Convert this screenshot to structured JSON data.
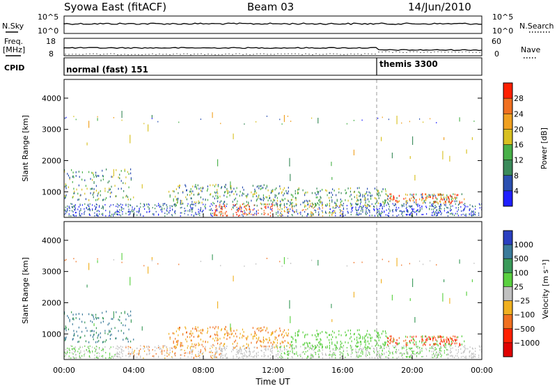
{
  "header": {
    "station": "Syowa East (fitACF)",
    "beam": "Beam 03",
    "date": "14/Jun/2010"
  },
  "sky_panel": {
    "left_label": "N.Sky",
    "left_ticks": [
      "10^5",
      "10^0"
    ],
    "right_ticks": [
      "10^5",
      "10^0"
    ],
    "right_label": "N.Search"
  },
  "freq_panel": {
    "left_label_line1": "Freq.",
    "left_label_line2": "[MHz]",
    "left_ticks": [
      "18",
      "8"
    ],
    "right_ticks": [
      "60",
      "0"
    ],
    "right_label": "Nave"
  },
  "cpid_panel": {
    "label": "CPID",
    "programs": [
      {
        "name": "normal (fast) 151",
        "start_hour": 0
      },
      {
        "name": "themis 3300",
        "start_hour": 18
      }
    ]
  },
  "colors": {
    "power_scale": [
      "#1f1fff",
      "#2a4fb0",
      "#3a8a5a",
      "#48b048",
      "#d8c020",
      "#f0a020",
      "#f07020",
      "#ff2000"
    ],
    "velocity_scale": [
      "#2a3fc0",
      "#3a7a9a",
      "#3a9a5a",
      "#5ad040",
      "#c0c0c0",
      "#f0b020",
      "#f07020",
      "#ff2000",
      "#e00000"
    ]
  },
  "chart_data": [
    {
      "type": "heatmap",
      "name": "power",
      "ylabel": "Slant Range [km]",
      "yticks": [
        "1000",
        "2000",
        "3000",
        "4000"
      ],
      "ylim": [
        180,
        4600
      ],
      "colorbar_label": "Power [dB]",
      "colorbar_ticks": [
        "4",
        "8",
        "12",
        "16",
        "20",
        "24",
        "28"
      ],
      "clim": [
        0,
        30
      ]
    },
    {
      "type": "heatmap",
      "name": "velocity",
      "ylabel": "Slant Range [km]",
      "yticks": [
        "1000",
        "2000",
        "3000",
        "4000"
      ],
      "ylim": [
        180,
        4600
      ],
      "colorbar_label": "Velocity [m s⁻¹]",
      "colorbar_ticks": [
        "1000",
        "500",
        "100",
        "25",
        "−25",
        "−100",
        "−500",
        "−1000"
      ],
      "xlabel": "Time UT",
      "xticks": [
        "00:00",
        "04:00",
        "08:00",
        "12:00",
        "16:00",
        "20:00",
        "00:00"
      ],
      "xlim_hours": [
        0,
        24
      ]
    }
  ]
}
